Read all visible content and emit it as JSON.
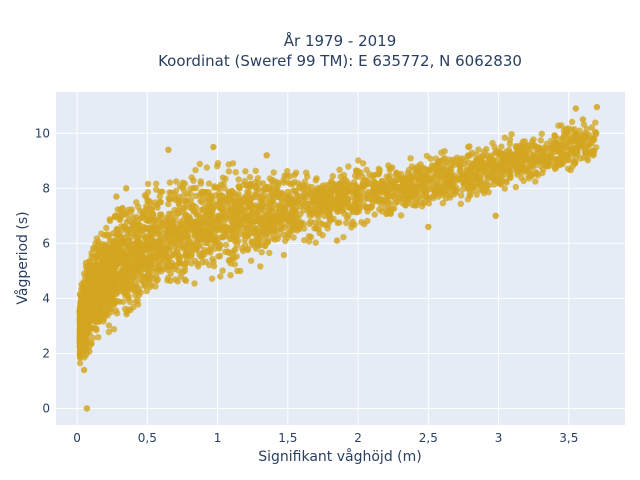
{
  "chart_data": {
    "type": "scatter",
    "title": "År 1979 - 2019",
    "subtitle": "Koordinat (Sweref 99 TM): E 635772, N 6062830",
    "xlabel": "Signifikant våghöjd (m)",
    "ylabel": "Vågperiod (s)",
    "xlim": [
      -0.15,
      3.9
    ],
    "ylim": [
      -0.6,
      11.5
    ],
    "x_ticks": [
      {
        "value": 0,
        "label": "0"
      },
      {
        "value": 0.5,
        "label": "0,5"
      },
      {
        "value": 1,
        "label": "1"
      },
      {
        "value": 1.5,
        "label": "1,5"
      },
      {
        "value": 2,
        "label": "2"
      },
      {
        "value": 2.5,
        "label": "2,5"
      },
      {
        "value": 3,
        "label": "3"
      },
      {
        "value": 3.5,
        "label": "3,5"
      }
    ],
    "y_ticks": [
      {
        "value": 0,
        "label": "0"
      },
      {
        "value": 2,
        "label": "2"
      },
      {
        "value": 4,
        "label": "4"
      },
      {
        "value": 6,
        "label": "6"
      },
      {
        "value": 8,
        "label": "8"
      },
      {
        "value": 10,
        "label": "10"
      }
    ],
    "grid": true,
    "colors": {
      "marker": "#d4a520",
      "plot_bg": "#e5ecf6",
      "grid": "#ffffff",
      "text": "#2a3f5f"
    },
    "outlier_points": [
      {
        "x": 0.07,
        "y": 0.0
      },
      {
        "x": 3.55,
        "y": 10.9
      },
      {
        "x": 3.7,
        "y": 10.95
      },
      {
        "x": 3.6,
        "y": 10.5
      },
      {
        "x": 0.05,
        "y": 1.4
      },
      {
        "x": 0.65,
        "y": 9.4
      },
      {
        "x": 0.97,
        "y": 9.5
      },
      {
        "x": 1.35,
        "y": 9.2
      },
      {
        "x": 0.28,
        "y": 7.7
      },
      {
        "x": 0.35,
        "y": 8.0
      },
      {
        "x": 2.98,
        "y": 7.0
      },
      {
        "x": 2.5,
        "y": 6.6
      },
      {
        "x": 1.85,
        "y": 6.1
      }
    ],
    "density_envelope": {
      "x": [
        0.0,
        0.05,
        0.1,
        0.2,
        0.3,
        0.4,
        0.5,
        0.6,
        0.8,
        1.0,
        1.25,
        1.5,
        1.75,
        2.0,
        2.25,
        2.5,
        2.75,
        3.0,
        3.25,
        3.5,
        3.7
      ],
      "y_min": [
        1.5,
        1.3,
        1.7,
        2.1,
        2.5,
        2.9,
        3.2,
        3.5,
        4.0,
        4.3,
        4.9,
        5.4,
        5.9,
        6.3,
        6.7,
        7.0,
        7.3,
        7.6,
        7.9,
        8.3,
        8.7
      ],
      "y_max": [
        3.6,
        5.4,
        6.4,
        7.4,
        7.9,
        8.2,
        8.5,
        8.8,
        9.2,
        9.3,
        9.1,
        9.0,
        9.1,
        9.2,
        9.3,
        9.5,
        9.7,
        10.0,
        10.3,
        10.6,
        10.8
      ]
    }
  }
}
